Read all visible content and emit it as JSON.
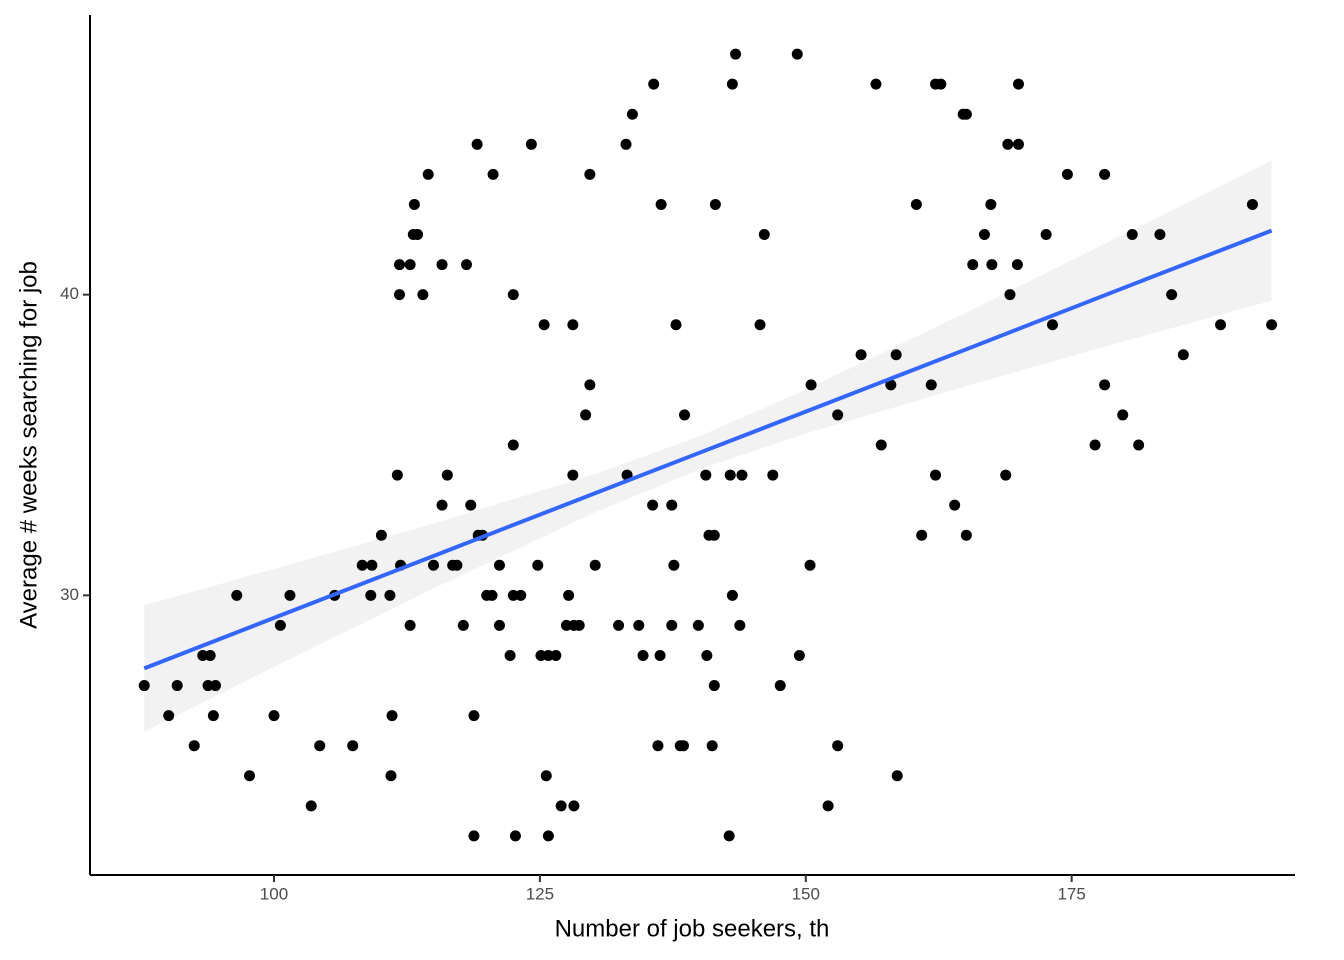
{
  "chart_data": {
    "type": "scatter",
    "x_label": "Number of job seekers, th",
    "y_label": "Average # weeks searching for job",
    "xlim": [
      82.7,
      196
    ],
    "ylim": [
      20.7,
      49.3
    ],
    "xticks": [
      100,
      125,
      150,
      175
    ],
    "yticks": [
      30,
      40
    ],
    "color": "#000000",
    "x": [
      143.4,
      149.2,
      135.7,
      143.1,
      156.6,
      162.2,
      162.7,
      170.0,
      133.7,
      164.8,
      165.1,
      119.1,
      124.2,
      133.1,
      169.0,
      170.0,
      114.5,
      120.6,
      129.7,
      174.6,
      178.1,
      113.2,
      136.4,
      141.5,
      160.4,
      167.4,
      192.0,
      113.1,
      113.5,
      146.1,
      166.8,
      172.6,
      180.7,
      183.3,
      111.8,
      112.8,
      115.8,
      118.1,
      165.7,
      167.5,
      169.9,
      111.8,
      114.0,
      122.5,
      169.2,
      184.4,
      125.4,
      128.1,
      137.8,
      145.7,
      173.2,
      189.0,
      193.8,
      155.2,
      158.5,
      185.5,
      129.7,
      150.5,
      158.0,
      161.8,
      178.1,
      129.3,
      138.6,
      153.0,
      179.8,
      122.5,
      157.1,
      177.2,
      181.3,
      111.6,
      116.3,
      128.1,
      133.2,
      140.6,
      142.9,
      144.0,
      146.9,
      162.2,
      168.8,
      115.8,
      118.5,
      135.6,
      137.4,
      164.0,
      110.1,
      119.2,
      119.6,
      140.9,
      141.4,
      160.9,
      165.1,
      108.3,
      109.2,
      111.9,
      115.0,
      116.8,
      117.2,
      121.2,
      124.8,
      130.2,
      137.6,
      150.4,
      96.5,
      101.5,
      105.7,
      109.1,
      110.9,
      120.0,
      120.5,
      122.5,
      123.2,
      127.7,
      143.1,
      100.6,
      112.8,
      117.8,
      121.2,
      127.5,
      128.2,
      128.7,
      132.4,
      134.3,
      137.4,
      139.9,
      143.8,
      93.3,
      94.0,
      122.2,
      125.1,
      125.8,
      126.5,
      134.7,
      136.3,
      140.7,
      149.4,
      87.8,
      90.9,
      93.8,
      94.5,
      141.4,
      147.6,
      90.1,
      94.3,
      100.0,
      111.1,
      118.8,
      92.5,
      104.3,
      107.4,
      136.1,
      138.2,
      138.5,
      141.2,
      153.0,
      97.7,
      111.0,
      125.6,
      158.6,
      103.5,
      127.0,
      128.2,
      152.1,
      118.8,
      122.7,
      125.8,
      142.8
    ],
    "values": [
      48,
      48,
      47,
      47,
      47,
      47,
      47,
      47,
      46,
      46,
      46,
      45,
      45,
      45,
      45,
      45,
      44,
      44,
      44,
      44,
      44,
      43,
      43,
      43,
      43,
      43,
      43,
      42,
      42,
      42,
      42,
      42,
      42,
      42,
      41,
      41,
      41,
      41,
      41,
      41,
      41,
      40,
      40,
      40,
      40,
      40,
      39,
      39,
      39,
      39,
      39,
      39,
      39,
      38,
      38,
      38,
      37,
      37,
      37,
      37,
      37,
      36,
      36,
      36,
      36,
      35,
      35,
      35,
      35,
      34,
      34,
      34,
      34,
      34,
      34,
      34,
      34,
      34,
      34,
      33,
      33,
      33,
      33,
      33,
      32,
      32,
      32,
      32,
      32,
      32,
      32,
      31,
      31,
      31,
      31,
      31,
      31,
      31,
      31,
      31,
      31,
      31,
      30,
      30,
      30,
      30,
      30,
      30,
      30,
      30,
      30,
      30,
      30,
      29,
      29,
      29,
      29,
      29,
      29,
      29,
      29,
      29,
      29,
      29,
      29,
      28,
      28,
      28,
      28,
      28,
      28,
      28,
      28,
      28,
      28,
      27,
      27,
      27,
      27,
      27,
      27,
      26,
      26,
      26,
      26,
      26,
      25,
      25,
      25,
      25,
      25,
      25,
      25,
      25,
      24,
      24,
      24,
      24,
      23,
      23,
      23,
      23,
      22,
      22,
      22,
      22
    ],
    "fit": {
      "color": "#3366ff",
      "band_color": "#f2f2f2",
      "x": [
        87.8,
        100,
        115,
        130,
        140,
        150,
        165,
        180,
        193.8
      ],
      "values": [
        27.57,
        29.25,
        31.31,
        33.37,
        34.74,
        36.11,
        38.17,
        40.24,
        42.13
      ],
      "lower": [
        25.47,
        27.62,
        30.23,
        32.73,
        34.19,
        35.38,
        36.95,
        38.46,
        39.8
      ],
      "upper": [
        29.67,
        30.88,
        32.39,
        34.01,
        35.29,
        36.84,
        39.39,
        42.02,
        44.46
      ]
    }
  }
}
